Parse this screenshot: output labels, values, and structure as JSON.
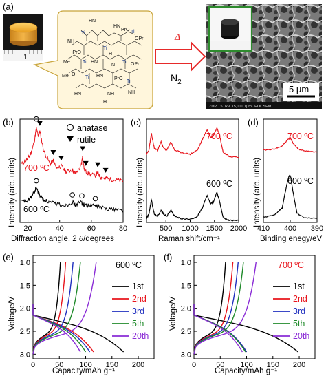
{
  "colors": {
    "red": "#e8141c",
    "black": "#000000",
    "blue": "#1f2fbf",
    "green": "#1f8a2a",
    "purple": "#8a2bd6",
    "bubble_fill": "#fff6dc",
    "bubble_stroke": "#c8a43a",
    "arrow": "#e62a2a",
    "pellet": "#f2b23a",
    "photo_frame": "#2e8b2e"
  },
  "panel_a": {
    "label": "(a)",
    "ruler_number": "1",
    "arrow_label_top": "Δ",
    "arrow_label_bottom_main": "N",
    "arrow_label_bottom_sub": "2",
    "scale_bar": "5 μm",
    "sem_caption": "ZDPU   5.0kV  X5,000   1μm   JEOL  SEM",
    "chem_atoms": {
      "ti": "Ti",
      "hn": "HN",
      "nh": "NH",
      "h": "H",
      "n": "N",
      "o": "O",
      "pro": "PrO",
      "opr": "OPr",
      "me": "Me",
      "ipro": "iPrO"
    }
  },
  "panel_b": {
    "label": "(b)",
    "ylabel": "Intensity (arb. units)",
    "xlabel_pre": "Diffraction angle, 2 ",
    "xlabel_theta": "θ",
    "xlabel_post": "/degrees",
    "xticks": [
      "20",
      "40",
      "60",
      "80"
    ],
    "legend": [
      {
        "symbol": "○",
        "label": "anatase"
      },
      {
        "symbol": "▼",
        "label": "rutile"
      }
    ],
    "curve_labels": [
      "700 ºC",
      "600 ºC"
    ]
  },
  "panel_c": {
    "label": "(c)",
    "ylabel": "Intensity (arb. units)",
    "xlabel": "Raman shift/cm⁻¹",
    "xticks": [
      "500",
      "1000",
      "1500",
      "2000"
    ],
    "curve_labels": [
      "700 ºC",
      "600 ºC"
    ]
  },
  "panel_d": {
    "label": "(d)",
    "ylabel": "Intensity (arb. units)",
    "xlabel": "Binding enegy/eV",
    "xticks": [
      "410",
      "400",
      "390"
    ],
    "curve_labels": [
      "700 ºC",
      "600 ºC"
    ]
  },
  "panel_e": {
    "label": "(e)",
    "title": "600 ºC",
    "ylabel": "Voltage/V",
    "xlabel": "Capacity/mAh g⁻¹",
    "yticks": [
      "3.0",
      "2.5",
      "2.0",
      "1.5",
      "1.0"
    ],
    "xticks": [
      "0",
      "50",
      "100",
      "150",
      "200"
    ],
    "legend": [
      "1st",
      "2nd",
      "3rd",
      "5th",
      "20th"
    ]
  },
  "panel_f": {
    "label": "(f)",
    "title": "700 ºC",
    "ylabel": "Voltage/V",
    "xlabel": "Capacity/mAh g⁻¹",
    "yticks": [
      "3.0",
      "2.5",
      "2.0",
      "1.5",
      "1.0"
    ],
    "xticks": [
      "0",
      "50",
      "100",
      "150",
      "200"
    ],
    "legend": [
      "1st",
      "2nd",
      "3rd",
      "5th",
      "20th"
    ]
  },
  "chart_data": [
    {
      "type": "line",
      "panel": "b",
      "xlabel": "Diffraction angle, 2 θ/degrees",
      "ylabel": "Intensity (arb. units)",
      "xlim": [
        15,
        80
      ],
      "xticks": [
        20,
        40,
        60,
        80
      ],
      "series": [
        {
          "name": "700 ºC",
          "color": "#e8141c",
          "x": [
            16,
            20,
            22,
            24,
            25.3,
            26.5,
            27.5,
            30,
            34,
            36,
            38,
            41,
            44,
            48,
            50,
            53.5,
            54.5,
            55.5,
            58,
            62.5,
            64,
            66,
            69,
            72,
            76,
            80
          ],
          "y": [
            0.62,
            0.68,
            0.74,
            0.86,
            1.0,
            0.92,
            0.97,
            0.76,
            0.62,
            0.66,
            0.58,
            0.6,
            0.54,
            0.56,
            0.52,
            0.6,
            0.7,
            0.56,
            0.52,
            0.5,
            0.53,
            0.48,
            0.47,
            0.46,
            0.45,
            0.44
          ]
        },
        {
          "name": "600 ºC",
          "color": "#000000",
          "x": [
            16,
            20,
            22,
            24,
            25.3,
            27,
            30,
            34,
            38,
            44,
            48,
            50,
            53.5,
            55,
            58,
            62.5,
            66,
            70,
            75,
            80
          ],
          "y": [
            0.22,
            0.23,
            0.27,
            0.32,
            0.37,
            0.3,
            0.24,
            0.21,
            0.2,
            0.18,
            0.22,
            0.18,
            0.22,
            0.19,
            0.18,
            0.18,
            0.16,
            0.15,
            0.14,
            0.13
          ]
        }
      ],
      "markers": {
        "anatase": [
          25.3,
          48,
          54,
          62.5
        ],
        "rutile": [
          27.5,
          36,
          41,
          54.5,
          56.5,
          64,
          69
        ]
      }
    },
    {
      "type": "line",
      "panel": "c",
      "xlabel": "Raman shift/cm⁻¹",
      "ylabel": "Intensity (arb. units)",
      "xlim": [
        100,
        2000
      ],
      "xticks": [
        500,
        1000,
        1500,
        2000
      ],
      "series": [
        {
          "name": "700 ºC",
          "color": "#e8141c",
          "x": [
            100,
            150,
            200,
            260,
            330,
            400,
            450,
            520,
            600,
            680,
            800,
            1000,
            1150,
            1250,
            1350,
            1420,
            1480,
            1550,
            1600,
            1680,
            1800,
            2000
          ],
          "y": [
            0.66,
            0.7,
            0.86,
            0.72,
            0.7,
            0.78,
            0.72,
            0.7,
            0.78,
            0.7,
            0.68,
            0.66,
            0.7,
            0.8,
            0.9,
            0.82,
            0.84,
            0.92,
            0.86,
            0.68,
            0.64,
            0.63
          ]
        },
        {
          "name": "600 ºC",
          "color": "#000000",
          "x": [
            100,
            150,
            200,
            260,
            330,
            400,
            450,
            520,
            600,
            680,
            800,
            1000,
            1150,
            1250,
            1350,
            1420,
            1480,
            1550,
            1600,
            1680,
            1800,
            2000
          ],
          "y": [
            0.04,
            0.08,
            0.22,
            0.08,
            0.06,
            0.12,
            0.08,
            0.06,
            0.12,
            0.06,
            0.04,
            0.03,
            0.06,
            0.14,
            0.26,
            0.18,
            0.2,
            0.29,
            0.22,
            0.05,
            0.02,
            0.02
          ]
        }
      ]
    },
    {
      "type": "line",
      "panel": "d",
      "xlabel": "Binding enegy/eV",
      "ylabel": "Intensity (arb. units)",
      "xlim": [
        410,
        390
      ],
      "xticks": [
        410,
        400,
        390
      ],
      "series": [
        {
          "name": "700 ºC",
          "color": "#e8141c",
          "x": [
            410,
            406,
            403,
            401,
            400,
            399,
            397,
            394,
            390
          ],
          "y": [
            0.7,
            0.71,
            0.74,
            0.8,
            0.82,
            0.77,
            0.71,
            0.69,
            0.68
          ]
        },
        {
          "name": "600 ºC",
          "color": "#000000",
          "x": [
            410,
            406,
            403,
            401.5,
            400.5,
            399.8,
            399,
            397.5,
            395,
            390
          ],
          "y": [
            0.05,
            0.07,
            0.14,
            0.34,
            0.45,
            0.44,
            0.3,
            0.09,
            0.05,
            0.04
          ]
        }
      ]
    },
    {
      "type": "line",
      "panel": "e",
      "title": "600 ºC",
      "xlabel": "Capacity/mAh g⁻¹",
      "ylabel": "Voltage/V",
      "xlim": [
        0,
        230
      ],
      "ylim": [
        0.9,
        3.15
      ],
      "xticks": [
        0,
        50,
        100,
        150,
        200
      ],
      "yticks": [
        1.0,
        1.5,
        2.0,
        2.5,
        3.0
      ],
      "series": [
        {
          "name": "1st",
          "color": "#000000",
          "discharge_end": 172,
          "charge_end": 52
        },
        {
          "name": "2nd",
          "color": "#e8141c",
          "discharge_end": 115,
          "charge_end": 62
        },
        {
          "name": "3rd",
          "color": "#1f2fbf",
          "discharge_end": 108,
          "charge_end": 76
        },
        {
          "name": "5th",
          "color": "#1f8a2a",
          "discharge_end": 100,
          "charge_end": 90
        },
        {
          "name": "20th",
          "color": "#8a2bd6",
          "discharge_end": 90,
          "charge_end": 120
        }
      ]
    },
    {
      "type": "line",
      "panel": "f",
      "title": "700 ºC",
      "xlabel": "Capacity/mAh g⁻¹",
      "ylabel": "Voltage/V",
      "xlim": [
        0,
        230
      ],
      "ylim": [
        0.9,
        3.15
      ],
      "xticks": [
        0,
        50,
        100,
        150,
        200
      ],
      "yticks": [
        1.0,
        1.5,
        2.0,
        2.5,
        3.0
      ],
      "series": [
        {
          "name": "1st",
          "color": "#000000",
          "discharge_end": 198,
          "charge_end": 60
        },
        {
          "name": "2nd",
          "color": "#e8141c",
          "discharge_end": 100,
          "charge_end": 74
        },
        {
          "name": "3rd",
          "color": "#1f2fbf",
          "discharge_end": 100,
          "charge_end": 84
        },
        {
          "name": "5th",
          "color": "#1f8a2a",
          "discharge_end": 98,
          "charge_end": 94
        },
        {
          "name": "20th",
          "color": "#8a2bd6",
          "discharge_end": 92,
          "charge_end": 118
        }
      ]
    }
  ]
}
